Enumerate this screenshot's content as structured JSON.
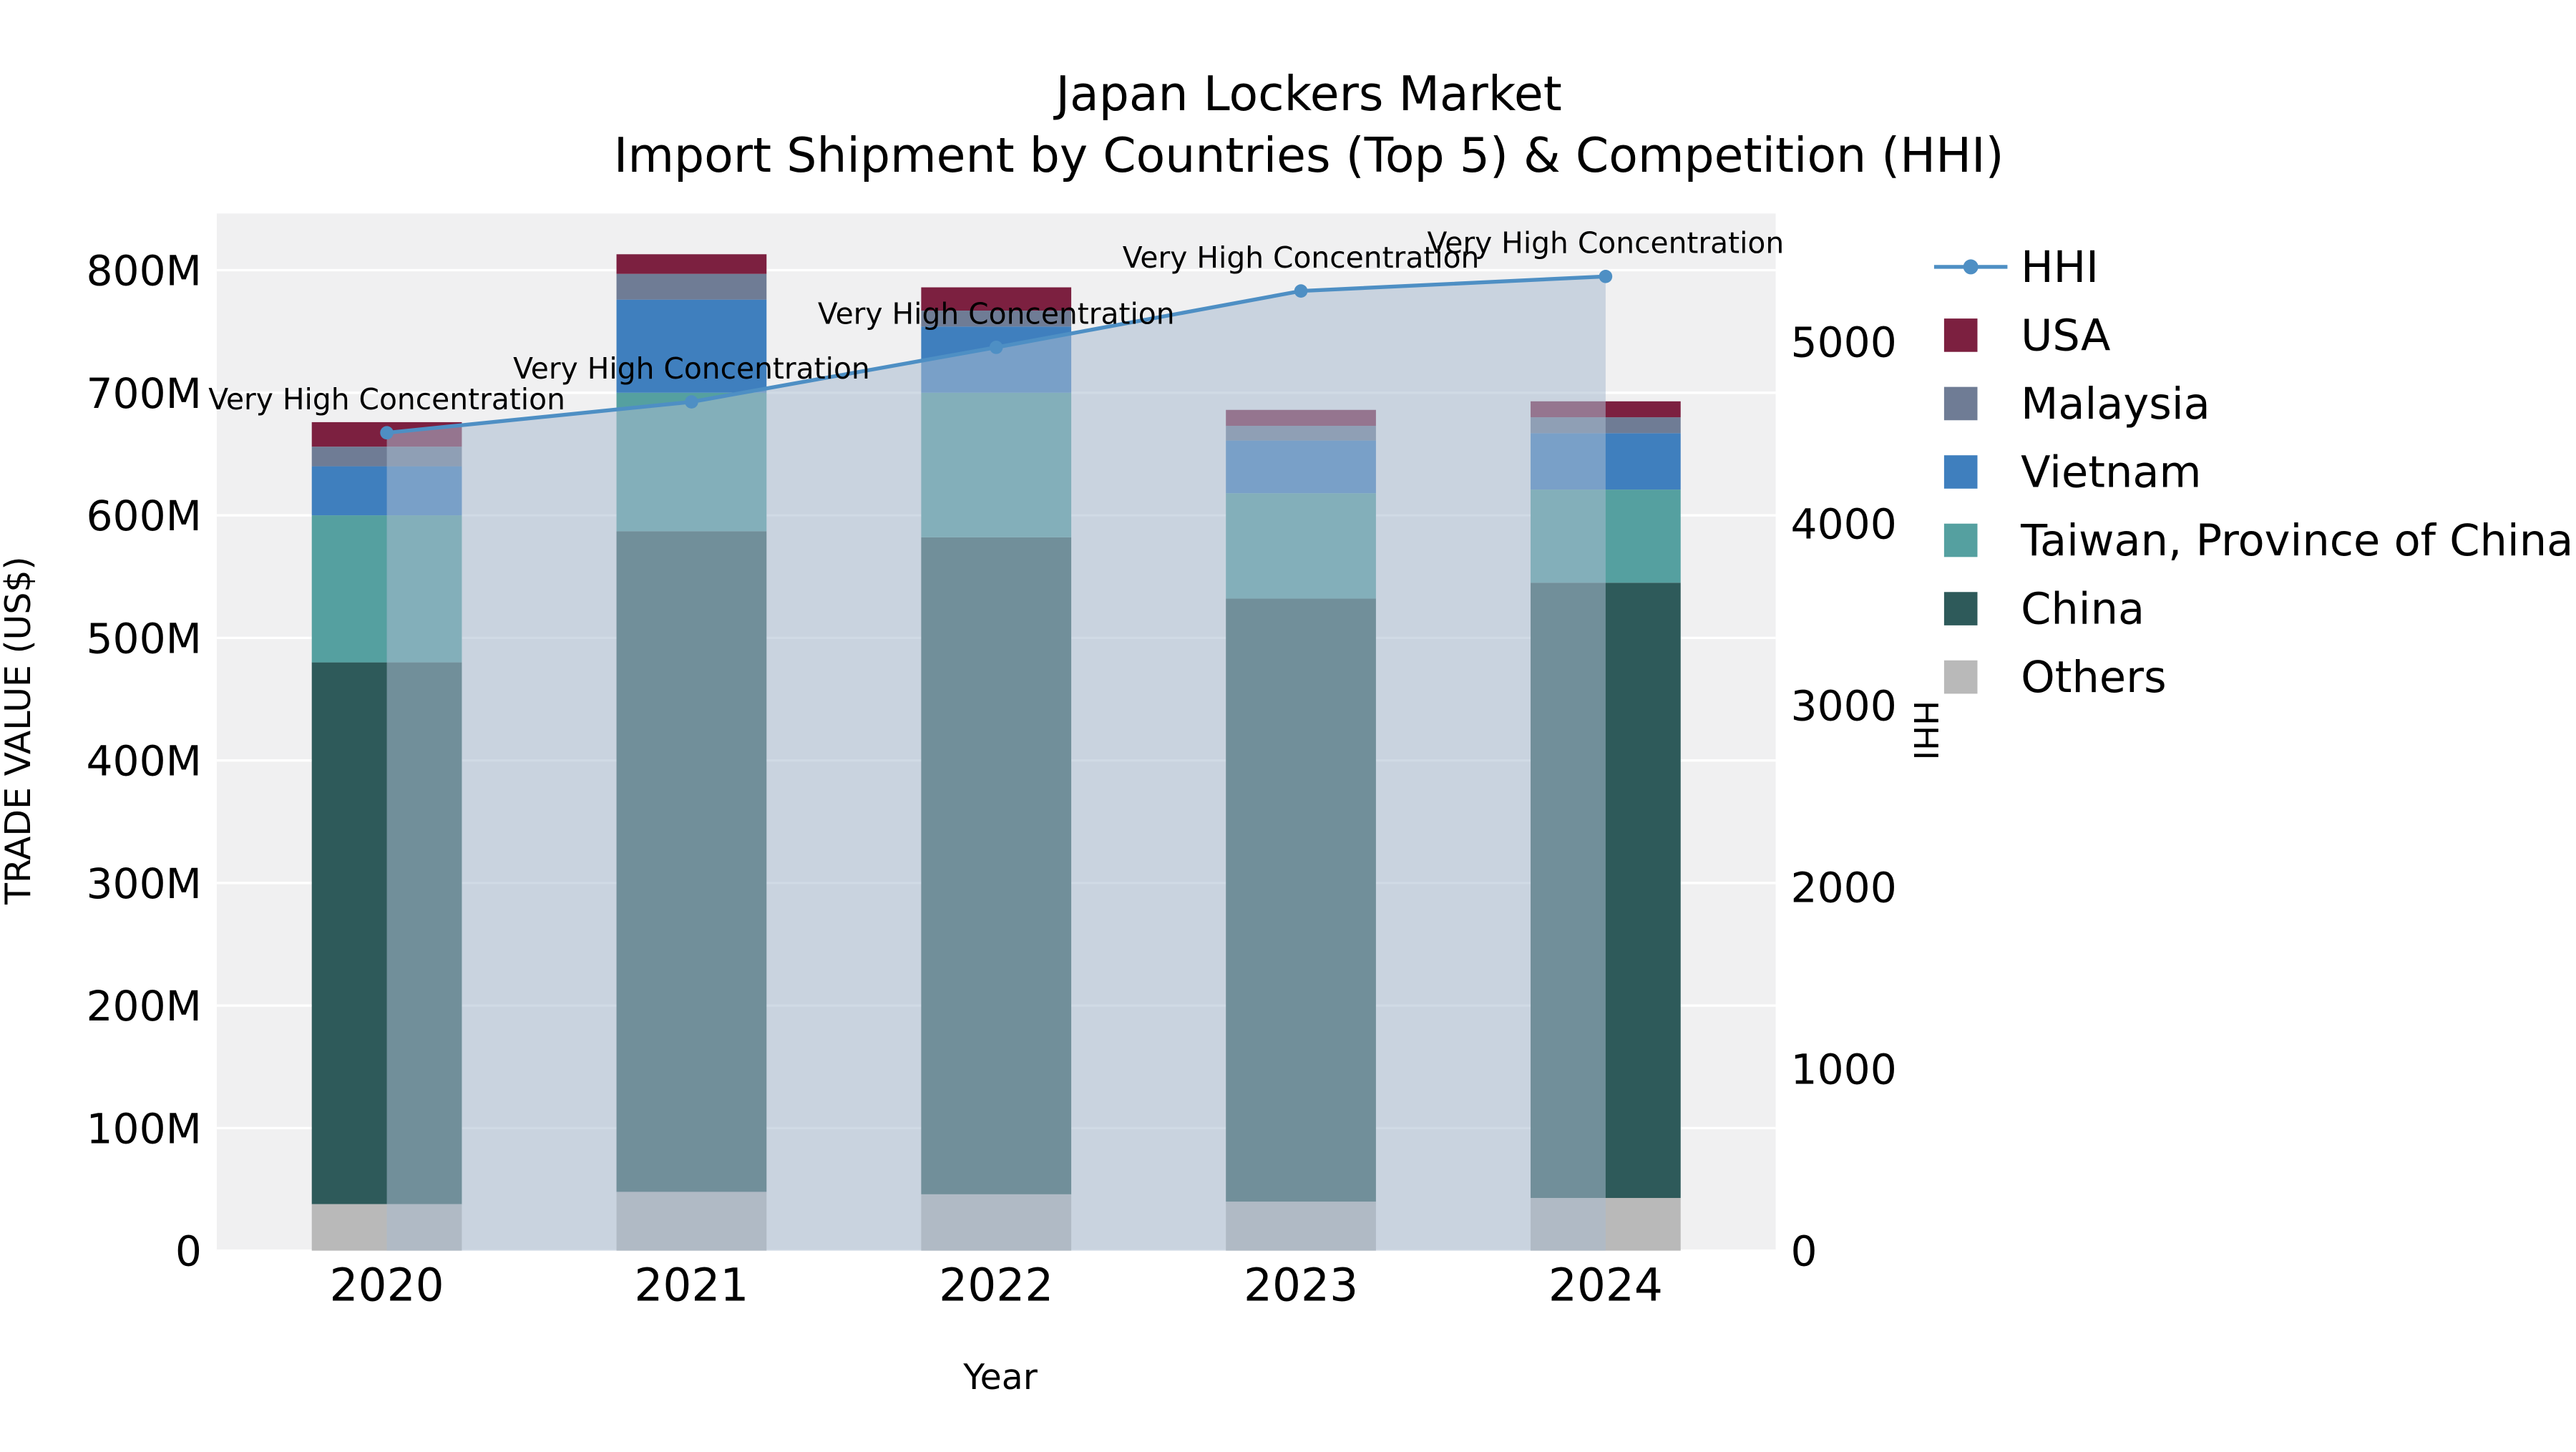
{
  "title": {
    "line1": "Japan Lockers Market",
    "line2": "Import Shipment by Countries (Top 5) & Competition (HHI)"
  },
  "axes": {
    "x_label": "Year",
    "y_left_label": "TRADE VALUE (US$)",
    "y_right_label": "HHI",
    "y_left_ticks": [
      "0",
      "100M",
      "200M",
      "300M",
      "400M",
      "500M",
      "600M",
      "700M",
      "800M"
    ],
    "y_right_ticks": [
      "0",
      "1000",
      "2000",
      "3000",
      "4000",
      "5000"
    ]
  },
  "legend": [
    {
      "label": "HHI",
      "type": "line",
      "color": "#4e8fc4"
    },
    {
      "label": "USA",
      "type": "square",
      "color": "#7c2040"
    },
    {
      "label": "Malaysia",
      "type": "square",
      "color": "#6f7c95"
    },
    {
      "label": "Vietnam",
      "type": "square",
      "color": "#3f7fbe"
    },
    {
      "label": "Taiwan, Province of China",
      "type": "square",
      "color": "#55a0a0"
    },
    {
      "label": "China",
      "type": "square",
      "color": "#2e5a5a"
    },
    {
      "label": "Others",
      "type": "square",
      "color": "#b9b9b9"
    }
  ],
  "chart_data": {
    "type": "stacked-bar+line",
    "title": "Japan Lockers Market — Import Shipment by Countries (Top 5) & Competition (HHI)",
    "categories": [
      "2020",
      "2021",
      "2022",
      "2023",
      "2024"
    ],
    "xlabel": "Year",
    "ylabel_left": "TRADE VALUE (US$)",
    "ylabel_right": "HHI",
    "bar_value_unit": "million US$",
    "ylim_left": [
      0,
      846
    ],
    "ylim_right": [
      0,
      5700
    ],
    "grid": true,
    "legend_position": "right",
    "series": [
      {
        "name": "Others",
        "color": "#b9b9b9",
        "values": [
          38,
          48,
          46,
          40,
          43
        ]
      },
      {
        "name": "China",
        "color": "#2e5a5a",
        "values": [
          442,
          539,
          536,
          492,
          502
        ]
      },
      {
        "name": "Taiwan, Province of China",
        "color": "#55a0a0",
        "values": [
          120,
          113,
          118,
          86,
          76
        ]
      },
      {
        "name": "Vietnam",
        "color": "#3f7fbe",
        "values": [
          40,
          76,
          54,
          43,
          46
        ]
      },
      {
        "name": "Malaysia",
        "color": "#6f7c95",
        "values": [
          16,
          21,
          13,
          12,
          13
        ]
      },
      {
        "name": "USA",
        "color": "#7c2040",
        "values": [
          20,
          16,
          19,
          13,
          13
        ]
      }
    ],
    "bar_totals": [
      676,
      813,
      786,
      686,
      692
    ],
    "line_series": {
      "name": "HHI",
      "axis": "right",
      "color": "#4e8fc4",
      "fill": "#a9bccf",
      "fill_opacity": 0.55,
      "values": [
        4500,
        4670,
        4970,
        5280,
        5360
      ]
    },
    "annotations": [
      "Very High Concentration",
      "Very High Concentration",
      "Very High Concentration",
      "Very High Concentration",
      "Very High Concentration"
    ]
  }
}
